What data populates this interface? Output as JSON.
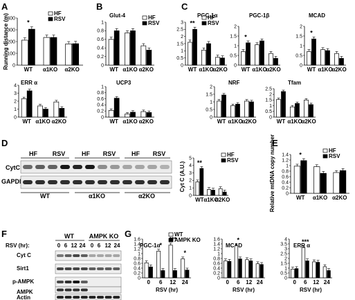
{
  "colors": {
    "hf": "#ffffff",
    "rsv": "#000000",
    "ctrl": "#ffffff",
    "ampk": "#000000",
    "axis": "#000000"
  },
  "chart_data": [
    {
      "panel": "A",
      "type": "bar",
      "title": "",
      "ylabel": "Running distance (m)",
      "ylim": [
        0,
        400
      ],
      "yticks": [
        "0",
        "100",
        "200",
        "300",
        "400"
      ],
      "categories": [
        "WT",
        "α1KO",
        "α2KO"
      ],
      "legend": [
        "HF",
        "RSV"
      ],
      "series": [
        {
          "name": "HF",
          "values": [
            212,
            235,
            180
          ]
        },
        {
          "name": "RSV",
          "values": [
            305,
            235,
            182
          ]
        }
      ],
      "annotations": [
        {
          "category": "WT",
          "text": "*"
        }
      ]
    },
    {
      "panel": "B",
      "type": "bar",
      "title": "Glut-4",
      "ylim": [
        0,
        1.0
      ],
      "yticks": [
        "0",
        "0.2",
        "0.4",
        "0.6",
        "0.8",
        "1"
      ],
      "categories": [
        "WT",
        "α1KO",
        "α2KO"
      ],
      "legend": [
        "HF",
        "RSV"
      ],
      "series": [
        {
          "name": "HF",
          "values": [
            0.6,
            0.75,
            0.45
          ]
        },
        {
          "name": "RSV",
          "values": [
            0.8,
            0.8,
            0.35
          ]
        }
      ]
    },
    {
      "panel": "B",
      "type": "bar",
      "title": "UCP3",
      "ylim": [
        0,
        1.0
      ],
      "yticks": [
        "0",
        "0.2",
        "0.4",
        "0.6",
        "0.8",
        "1"
      ],
      "categories": [
        "WT",
        "α1KO",
        "α2KO"
      ],
      "series": [
        {
          "name": "HF",
          "values": [
            0.22,
            0.1,
            0.18
          ]
        },
        {
          "name": "RSV",
          "values": [
            0.62,
            0.16,
            0.15
          ]
        }
      ]
    },
    {
      "panel": "C",
      "type": "bar",
      "title": "PGC-1α",
      "ylim": [
        0,
        3.0
      ],
      "yticks": [
        "0",
        "0.5",
        "1",
        "1.5",
        "2",
        "2.5",
        "3"
      ],
      "categories": [
        "WT",
        "α1KO",
        "α2KO"
      ],
      "legend": [
        "HF",
        "RSV"
      ],
      "series": [
        {
          "name": "HF",
          "values": [
            1.6,
            1.05,
            0.55
          ]
        },
        {
          "name": "RSV",
          "values": [
            2.5,
            1.5,
            0.5
          ]
        }
      ],
      "annotations": [
        {
          "category": "WT",
          "text": "**"
        }
      ]
    },
    {
      "panel": "C",
      "type": "bar",
      "title": "PGC-1β",
      "ylim": [
        0,
        2.0
      ],
      "yticks": [
        "0",
        "0.5",
        "1",
        "1.5",
        "2"
      ],
      "categories": [
        "WT",
        "α1KO",
        "α2KO"
      ],
      "series": [
        {
          "name": "HF",
          "values": [
            0.7,
            1.05,
            0.6
          ]
        },
        {
          "name": "RSV",
          "values": [
            1.15,
            1.25,
            0.35
          ]
        }
      ],
      "annotations": [
        {
          "category": "WT",
          "text": "*"
        }
      ]
    },
    {
      "panel": "C",
      "type": "bar",
      "title": "MCAD",
      "ylim": [
        0,
        2.0
      ],
      "yticks": [
        "0",
        "0.5",
        "1",
        "1.5",
        "2"
      ],
      "categories": [
        "WT",
        "α1KO",
        "α2KO"
      ],
      "series": [
        {
          "name": "HF",
          "values": [
            0.7,
            0.8,
            0.6
          ]
        },
        {
          "name": "RSV",
          "values": [
            1.35,
            0.75,
            0.35
          ]
        }
      ],
      "annotations": [
        {
          "category": "WT",
          "text": "*"
        }
      ]
    },
    {
      "panel": "A",
      "type": "bar",
      "title": "ERR α",
      "ylim": [
        0,
        4
      ],
      "yticks": [
        "0",
        "1",
        "2",
        "3",
        "4"
      ],
      "categories": [
        "WT",
        "α1KO",
        "α2KO"
      ],
      "series": [
        {
          "name": "HF",
          "values": [
            2.3,
            1.4,
            1.9
          ]
        },
        {
          "name": "RSV",
          "values": [
            3.3,
            1.0,
            1.1
          ]
        }
      ]
    },
    {
      "panel": "C",
      "type": "bar",
      "title": "NRF",
      "ylim": [
        0,
        2.0
      ],
      "yticks": [
        "0",
        "0.5",
        "1",
        "1.5",
        "2"
      ],
      "categories": [
        "WT",
        "α1KO",
        "α2KO"
      ],
      "series": [
        {
          "name": "HF",
          "values": [
            1.05,
            0.75,
            1.05
          ]
        },
        {
          "name": "RSV",
          "values": [
            1.45,
            0.85,
            1.0
          ]
        }
      ]
    },
    {
      "panel": "C",
      "type": "bar",
      "title": "Tfam",
      "ylim": [
        0,
        2.5
      ],
      "yticks": [
        "0",
        "0.5",
        "1",
        "1.5",
        "2",
        "2.5"
      ],
      "categories": [
        "WT",
        "α1KO",
        "α2KO"
      ],
      "series": [
        {
          "name": "HF",
          "values": [
            1.55,
            0.9,
            1.5
          ]
        },
        {
          "name": "RSV",
          "values": [
            2.25,
            1.2,
            1.1
          ]
        }
      ]
    },
    {
      "panel": "D",
      "type": "bar",
      "title": "",
      "ylabel": "Cyt C (A.U.)",
      "ylim": [
        0,
        5
      ],
      "yticks": [
        "0",
        "1",
        "2",
        "3",
        "4",
        "5"
      ],
      "categories": [
        "WT",
        "α1KO",
        "α2KO"
      ],
      "legend": [
        "HF",
        "RSV"
      ],
      "series": [
        {
          "name": "HF",
          "values": [
            1.8,
            0.8,
            0.9
          ]
        },
        {
          "name": "RSV",
          "values": [
            3.6,
            0.7,
            0.45
          ]
        }
      ],
      "annotations": [
        {
          "category": "WT",
          "text": "**"
        }
      ]
    },
    {
      "panel": "E",
      "type": "bar",
      "title": "",
      "ylabel": "Relative mtDNA copy number",
      "ylim": [
        0,
        1.4
      ],
      "yticks": [
        "0",
        "0.2",
        "0.4",
        "0.6",
        "0.8",
        "1",
        "1.2",
        "1.4"
      ],
      "categories": [
        "WT",
        "α1KO",
        "α2KO"
      ],
      "legend": [
        "HF",
        "RSV"
      ],
      "series": [
        {
          "name": "HF",
          "values": [
            0.98,
            0.96,
            0.75
          ]
        },
        {
          "name": "RSV",
          "values": [
            1.18,
            0.72,
            0.82
          ]
        }
      ],
      "annotations": [
        {
          "category": "WT",
          "text": "*"
        }
      ]
    },
    {
      "panel": "G",
      "type": "bar",
      "title": "PGC-1α",
      "ylim": [
        0,
        1.6
      ],
      "yticks": [
        "0",
        "0.2",
        "0.4",
        "0.6",
        "0.8",
        "1",
        "1.2",
        "1.4",
        "1.6"
      ],
      "categories": [
        "0",
        "6",
        "12",
        "24"
      ],
      "xlabel": "RSV (hr)",
      "legend": [
        "WT",
        "AMPK KO"
      ],
      "series": [
        {
          "name": "WT",
          "values": [
            0.62,
            1.1,
            1.35,
            0.78
          ]
        },
        {
          "name": "AMPK KO",
          "values": [
            0.45,
            0.3,
            0.3,
            0.32
          ]
        }
      ],
      "annotations": [
        {
          "category": "6",
          "text": "*"
        },
        {
          "category": "12",
          "text": "***"
        },
        {
          "category": "24",
          "text": "*"
        }
      ]
    },
    {
      "panel": "G",
      "type": "bar",
      "title": "MCAD",
      "ylim": [
        0,
        1.6
      ],
      "yticks": [
        "0",
        "0.2",
        "0.4",
        "0.6",
        "0.8",
        "1",
        "1.2",
        "1.4",
        "1.6"
      ],
      "categories": [
        "0",
        "6",
        "12",
        "24"
      ],
      "xlabel": "RSV (hr)",
      "series": [
        {
          "name": "WT",
          "values": [
            0.7,
            1.32,
            0.75,
            0.58
          ]
        },
        {
          "name": "AMPK KO",
          "values": [
            0.68,
            0.78,
            0.7,
            0.55
          ]
        }
      ],
      "annotations": [
        {
          "category": "6",
          "text": "*"
        }
      ]
    },
    {
      "panel": "G",
      "type": "bar",
      "title": "ERR α",
      "ylim": [
        0,
        4
      ],
      "yticks": [
        "0",
        "0.5",
        "1",
        "1.5",
        "2",
        "2.5",
        "3",
        "3.5",
        "4"
      ],
      "categories": [
        "0",
        "6",
        "12",
        "24"
      ],
      "xlabel": "RSV (hr)",
      "series": [
        {
          "name": "WT",
          "values": [
            0.9,
            3.1,
            1.65,
            1.15
          ]
        },
        {
          "name": "AMPK KO",
          "values": [
            0.95,
            1.75,
            1.6,
            0.75
          ]
        }
      ],
      "annotations": [
        {
          "category": "6",
          "text": "***"
        }
      ]
    }
  ],
  "panel_labels": [
    "A",
    "B",
    "C",
    "D",
    "E",
    "F",
    "G"
  ],
  "blot_d": {
    "groups": [
      "HF",
      "RSV",
      "HF",
      "RSV",
      "HF",
      "RSV"
    ],
    "genotypes": [
      "WT",
      "α1KO",
      "α2KO"
    ],
    "rows": [
      "CytC",
      "GAPDH"
    ]
  },
  "blot_f": {
    "genotype_headers": [
      "WT",
      "AMPK KO"
    ],
    "rsv_label": "RSV (hr):",
    "timepoints": [
      "0",
      "6",
      "12",
      "24",
      "0",
      "6",
      "12",
      "24"
    ],
    "rows": [
      "Cyt C",
      "Sirt1",
      "p-AMPK",
      "AMPK",
      "Actin"
    ]
  }
}
